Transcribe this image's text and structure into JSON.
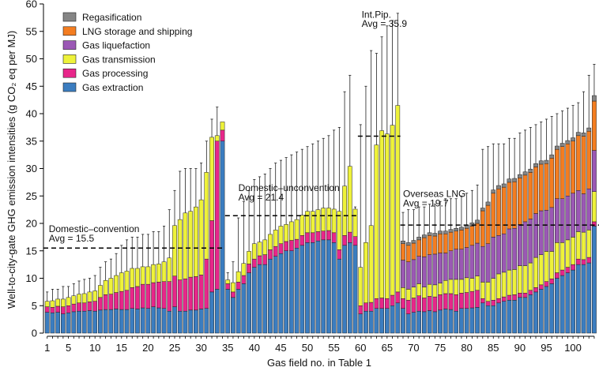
{
  "chart_data": {
    "type": "bar",
    "stacked": true,
    "xlabel": "Gas field no. in Table 1",
    "ylabel": "Well-to-city-gate GHG emission intensities (g CO₂ eq per MJ)",
    "ylim": [
      0,
      60
    ],
    "yticks": [
      0,
      5,
      10,
      15,
      20,
      25,
      30,
      35,
      40,
      45,
      50,
      55,
      60
    ],
    "xticks": [
      1,
      5,
      10,
      15,
      20,
      25,
      30,
      35,
      40,
      45,
      50,
      55,
      60,
      65,
      70,
      75,
      80,
      85,
      90,
      95,
      100
    ],
    "xlim": [
      0.3,
      104.9
    ],
    "grid": false,
    "legend_position": "top-left",
    "components": [
      {
        "key": "extraction",
        "name": "Gas extraction",
        "color": "#3b7dc0"
      },
      {
        "key": "processing",
        "name": "Gas processing",
        "color": "#e8268a"
      },
      {
        "key": "transmission",
        "name": "Gas transmission",
        "color": "#eef23a"
      },
      {
        "key": "liquefaction",
        "name": "Gas liquefaction",
        "color": "#9b58b5"
      },
      {
        "key": "lng",
        "name": "LNG storage and shipping",
        "color": "#f47d20"
      },
      {
        "key": "regas",
        "name": "Regasification",
        "color": "#858585"
      }
    ],
    "categories": [
      "1",
      "2",
      "3",
      "4",
      "5",
      "6",
      "7",
      "8",
      "9",
      "10",
      "11",
      "12",
      "13",
      "14",
      "15",
      "16",
      "17",
      "18",
      "19",
      "20",
      "21",
      "22",
      "23",
      "24",
      "25",
      "26",
      "27",
      "28",
      "29",
      "30",
      "31",
      "32",
      "33",
      "34",
      "35",
      "36",
      "37",
      "38",
      "39",
      "40",
      "41",
      "42",
      "43",
      "44",
      "45",
      "46",
      "47",
      "48",
      "49",
      "50",
      "51",
      "52",
      "53",
      "54",
      "55",
      "56",
      "57",
      "58",
      "59",
      "60",
      "61",
      "62",
      "63",
      "64",
      "65",
      "66",
      "67",
      "68",
      "69",
      "70",
      "71",
      "72",
      "73",
      "74",
      "75",
      "76",
      "77",
      "78",
      "79",
      "80",
      "81",
      "82",
      "83",
      "84",
      "85",
      "86",
      "87",
      "88",
      "89",
      "90",
      "91",
      "92",
      "93",
      "94",
      "95",
      "96",
      "97",
      "98",
      "99",
      "100",
      "101",
      "102",
      "103",
      "104"
    ],
    "series": [
      {
        "key": "extraction",
        "values": [
          3.8,
          3.7,
          3.8,
          3.5,
          3.7,
          3.9,
          4.0,
          4.0,
          4.1,
          4.0,
          4.2,
          4.3,
          4.3,
          4.4,
          4.3,
          4.3,
          4.5,
          4.4,
          4.6,
          4.5,
          4.8,
          4.6,
          4.5,
          4.0,
          4.8,
          4.0,
          4.0,
          4.2,
          4.2,
          4.4,
          4.5,
          7.5,
          8.0,
          35.0,
          8.0,
          6.5,
          8.0,
          9.0,
          11.0,
          12.0,
          12.5,
          12.5,
          13.5,
          14.0,
          14.5,
          15.0,
          15.0,
          15.5,
          16.0,
          16.5,
          16.5,
          16.8,
          17.0,
          17.0,
          16.5,
          13.5,
          16.0,
          16.5,
          16.0,
          3.5,
          4.0,
          4.0,
          4.5,
          4.5,
          4.5,
          5.0,
          5.5,
          4.5,
          3.5,
          3.8,
          4.0,
          3.9,
          4.1,
          3.9,
          4.2,
          4.4,
          4.3,
          4.0,
          4.5,
          4.5,
          4.6,
          4.7,
          5.5,
          5.0,
          5.0,
          5.5,
          5.8,
          6.0,
          6.0,
          6.5,
          6.5,
          7.0,
          7.5,
          8.0,
          8.5,
          9.0,
          10.0,
          10.5,
          11.0,
          11.5,
          12.5,
          12.5,
          12.8,
          19.5
        ]
      },
      {
        "key": "processing",
        "values": [
          1.0,
          1.0,
          1.1,
          1.3,
          1.3,
          1.4,
          1.5,
          1.5,
          1.6,
          1.8,
          2.3,
          2.7,
          2.8,
          3.0,
          3.3,
          3.5,
          3.8,
          4.1,
          4.3,
          4.4,
          4.4,
          4.7,
          4.9,
          5.4,
          5.6,
          5.7,
          5.9,
          6.0,
          6.1,
          6.2,
          9.0,
          13.0,
          27.0,
          2.0,
          1.0,
          1.0,
          1.3,
          1.5,
          1.6,
          1.5,
          1.6,
          1.8,
          1.7,
          1.8,
          1.8,
          1.7,
          1.9,
          1.6,
          1.8,
          1.8,
          1.8,
          1.7,
          1.6,
          1.7,
          1.8,
          1.7,
          1.8,
          1.9,
          1.6,
          1.5,
          1.5,
          1.6,
          1.8,
          1.9,
          1.8,
          1.9,
          2.0,
          1.8,
          2.5,
          2.6,
          2.8,
          2.5,
          2.6,
          2.7,
          2.8,
          2.8,
          2.9,
          3.0,
          2.8,
          2.9,
          3.0,
          3.1,
          0.8,
          0.8,
          1.0,
          0.8,
          0.8,
          0.9,
          1.0,
          0.8,
          0.8,
          0.8,
          0.8,
          0.8,
          0.9,
          0.9,
          1.0,
          1.0,
          1.0,
          1.0,
          1.0,
          0.9,
          1.0,
          0.8
        ]
      },
      {
        "key": "transmission",
        "values": [
          1.0,
          1.2,
          1.3,
          1.4,
          1.5,
          1.5,
          1.6,
          1.7,
          1.8,
          1.9,
          2.2,
          2.6,
          2.9,
          3.1,
          3.4,
          3.5,
          3.5,
          3.3,
          3.2,
          3.2,
          3.3,
          3.3,
          3.6,
          4.3,
          9.2,
          11.0,
          12.0,
          12.0,
          12.7,
          13.7,
          15.8,
          15.2,
          1.0,
          1.5,
          0.7,
          1.7,
          1.9,
          2.2,
          2.3,
          2.8,
          2.5,
          2.7,
          2.8,
          3.0,
          3.2,
          3.1,
          3.4,
          3.6,
          3.7,
          3.9,
          3.9,
          4.0,
          4.2,
          4.1,
          4.3,
          7.0,
          9.0,
          12.0,
          5.0,
          7.0,
          11.0,
          14.0,
          28.0,
          30.5,
          30.0,
          31.0,
          34.0,
          2.0,
          2.0,
          2.0,
          2.2,
          2.0,
          2.2,
          2.2,
          2.1,
          2.4,
          2.6,
          2.8,
          2.5,
          2.7,
          2.4,
          2.6,
          3.0,
          3.5,
          4.0,
          4.5,
          4.5,
          4.6,
          4.6,
          5.0,
          5.0,
          5.0,
          5.5,
          5.5,
          5.5,
          5.0,
          5.5,
          5.0,
          5.0,
          5.0,
          5.0,
          5.0,
          5.0,
          5.5
        ]
      },
      {
        "key": "liquefaction",
        "values": [
          0,
          0,
          0,
          0,
          0,
          0,
          0,
          0,
          0,
          0,
          0,
          0,
          0,
          0,
          0,
          0,
          0,
          0,
          0,
          0,
          0,
          0,
          0,
          0,
          0,
          0,
          0,
          0,
          0,
          0,
          0,
          0,
          0,
          0,
          0,
          0,
          0,
          0,
          0,
          0,
          0,
          0,
          0,
          0,
          0,
          0,
          0,
          0,
          0,
          0,
          0,
          0,
          0,
          0,
          0,
          0,
          0,
          0,
          0,
          0,
          0,
          0,
          0,
          0,
          0,
          0,
          0,
          5.0,
          5.0,
          5.0,
          5.0,
          5.5,
          5.4,
          5.6,
          5.5,
          5.0,
          5.2,
          5.5,
          5.5,
          5.5,
          6.0,
          6.0,
          6.5,
          7.0,
          7.5,
          7.0,
          7.0,
          7.5,
          7.5,
          7.5,
          8.0,
          8.0,
          8.0,
          8.0,
          7.5,
          8.0,
          8.0,
          8.0,
          8.0,
          8.0,
          7.5,
          7.0,
          7.5,
          7.5
        ]
      },
      {
        "key": "lng",
        "values": [
          0,
          0,
          0,
          0,
          0,
          0,
          0,
          0,
          0,
          0,
          0,
          0,
          0,
          0,
          0,
          0,
          0,
          0,
          0,
          0,
          0,
          0,
          0,
          0,
          0,
          0,
          0,
          0,
          0,
          0,
          0,
          0,
          0,
          0,
          0,
          0,
          0,
          0,
          0,
          0,
          0,
          0,
          0,
          0,
          0,
          0,
          0,
          0,
          0,
          0,
          0,
          0,
          0,
          0,
          0,
          0,
          0,
          0,
          0,
          0,
          0,
          0,
          0,
          0,
          0,
          0,
          0,
          3.0,
          3.0,
          3.0,
          3.0,
          3.5,
          3.5,
          3.3,
          3.5,
          3.5,
          3.4,
          3.3,
          3.5,
          3.5,
          3.5,
          3.6,
          6.5,
          7.0,
          8.0,
          8.5,
          8.5,
          8.5,
          8.5,
          8.5,
          8.5,
          8.5,
          8.5,
          8.5,
          8.5,
          9.0,
          9.0,
          9.5,
          9.5,
          9.5,
          10.0,
          10.5,
          10.5,
          9.0
        ]
      },
      {
        "key": "regas",
        "values": [
          0,
          0,
          0,
          0,
          0,
          0,
          0,
          0,
          0,
          0,
          0,
          0,
          0,
          0,
          0,
          0,
          0,
          0,
          0,
          0,
          0,
          0,
          0,
          0,
          0,
          0,
          0,
          0,
          0,
          0,
          0,
          0,
          0,
          0,
          0,
          0,
          0,
          0,
          0,
          0,
          0,
          0,
          0,
          0,
          0,
          0,
          0,
          0,
          0,
          0,
          0,
          0,
          0,
          0,
          0,
          0,
          0,
          0,
          0,
          0,
          0,
          0,
          0,
          0,
          0,
          0,
          0,
          0.5,
          0.5,
          0.5,
          0.5,
          0.5,
          0.5,
          0.5,
          0.5,
          0.5,
          0.5,
          0.5,
          0.5,
          0.6,
          0.6,
          0.6,
          0.5,
          0.6,
          0.6,
          0.6,
          0.6,
          0.6,
          0.6,
          0.6,
          0.6,
          0.6,
          0.6,
          0.6,
          0.6,
          0.6,
          0.6,
          0.6,
          0.6,
          0.6,
          0.6,
          0.6,
          0.6,
          1.0
        ]
      }
    ],
    "error_top": [
      7.5,
      8.0,
      8.0,
      8.5,
      8.5,
      9.0,
      9.5,
      9.8,
      10.0,
      10.5,
      12.0,
      13.0,
      13.5,
      14.5,
      16.0,
      17.0,
      17.5,
      17.5,
      18.0,
      18.0,
      18.5,
      18.5,
      19.5,
      22.5,
      26.0,
      29.5,
      30.0,
      30.0,
      30.0,
      31.0,
      35.0,
      39.0,
      41.2,
      10.5,
      11.0,
      13.0,
      21.0,
      24.0,
      26.0,
      28.0,
      28.5,
      29.0,
      30.0,
      31.0,
      31.5,
      32.0,
      32.5,
      33.0,
      33.5,
      34.0,
      34.5,
      35.0,
      35.5,
      36.0,
      37.0,
      37.5,
      44.0,
      47.0,
      23.0,
      38.0,
      45.0,
      51.5,
      51.0,
      54.0,
      56.0,
      57.0,
      58.3,
      22.0,
      22.5,
      22.5,
      23.0,
      23.0,
      23.5,
      23.5,
      24.0,
      24.5,
      24.5,
      24.5,
      25.0,
      25.5,
      26.0,
      27.0,
      33.5,
      34.0,
      34.5,
      34.5,
      34.5,
      35.5,
      35.5,
      36.5,
      37.0,
      37.5,
      38.0,
      38.5,
      39.0,
      39.5,
      40.0,
      40.5,
      41.0,
      41.5,
      42.0,
      44.0,
      47.0,
      49.0
    ],
    "annotations": [
      {
        "lines": [
          "Domestic–convention",
          "Avg = 15.5"
        ],
        "avg": 15.5,
        "from": 0.3,
        "to": 34.5,
        "text_x": 1.3,
        "text_y": [
          18.4,
          16.7
        ]
      },
      {
        "lines": [
          "Domestic–unconvention",
          "Avg = 21.4"
        ],
        "avg": 21.4,
        "from": 34.5,
        "to": 59.5,
        "text_x": 37,
        "text_y": [
          25.9,
          24.2
        ]
      },
      {
        "lines": [
          "Int.Pip.",
          "Avg = 35.9"
        ],
        "avg": 35.9,
        "from": 59.5,
        "to": 67.5,
        "text_x": 60.2,
        "text_y": [
          57.5,
          55.8
        ]
      },
      {
        "lines": [
          "Overseas LNG",
          "Avg = 19.7"
        ],
        "avg": 19.7,
        "from": 67.5,
        "to": 104.9,
        "text_x": 68,
        "text_y": [
          24.8,
          23.1
        ]
      }
    ]
  }
}
